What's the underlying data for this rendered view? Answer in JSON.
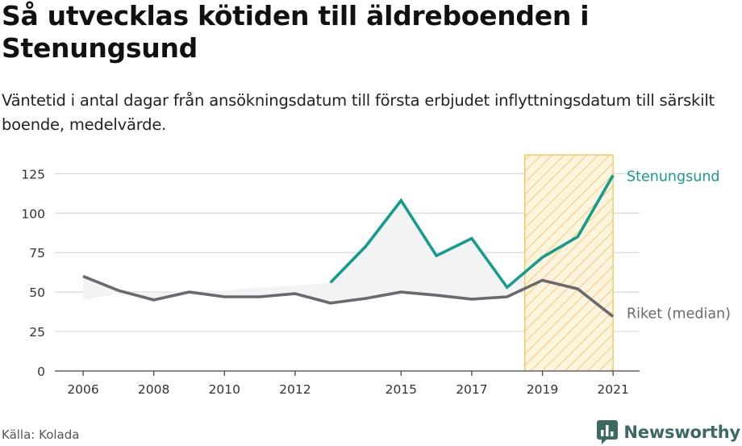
{
  "title": "Så utvecklas kötiden till äldreboenden i Stenungsund",
  "subtitle": "Väntetid i antal dagar från ansökningsdatum till första erbjudet inflyttningsdatum till särskilt boende, medelvärde.",
  "source": "Källa: Kolada",
  "brand": "Newsworthy",
  "colors": {
    "stenungsund": "#149c8f",
    "riket": "#6b6870",
    "highlight": "#f5c04a",
    "grid": "#d9d9d9"
  },
  "chart_data": {
    "type": "line",
    "x": [
      2006,
      2007,
      2008,
      2009,
      2010,
      2011,
      2012,
      2013,
      2014,
      2015,
      2016,
      2017,
      2018,
      2019,
      2020,
      2021
    ],
    "x_ticks": [
      "2006",
      "2008",
      "2010",
      "2012",
      "2015",
      "2017",
      "2019",
      "2021"
    ],
    "y_ticks": [
      "0",
      "25",
      "50",
      "75",
      "100",
      "125"
    ],
    "ylim": [
      0,
      140
    ],
    "xlim": [
      2005.2,
      2021.75
    ],
    "grid": "horizontal",
    "highlight_range": [
      2018.5,
      2021
    ],
    "series": [
      {
        "name": "Stenungsund",
        "values": [
          null,
          null,
          null,
          null,
          null,
          null,
          null,
          56,
          79,
          108,
          73,
          84,
          53,
          72,
          85,
          124
        ]
      },
      {
        "name": "Riket (median)",
        "values": [
          60,
          51,
          45,
          50,
          47,
          47,
          49,
          43,
          46,
          50,
          48,
          45.5,
          47,
          57.5,
          52,
          34.5
        ]
      }
    ],
    "band_upper": [
      45,
      49,
      49,
      51,
      51,
      53,
      54,
      56,
      79,
      108,
      73,
      84,
      53,
      72,
      85,
      124
    ]
  }
}
